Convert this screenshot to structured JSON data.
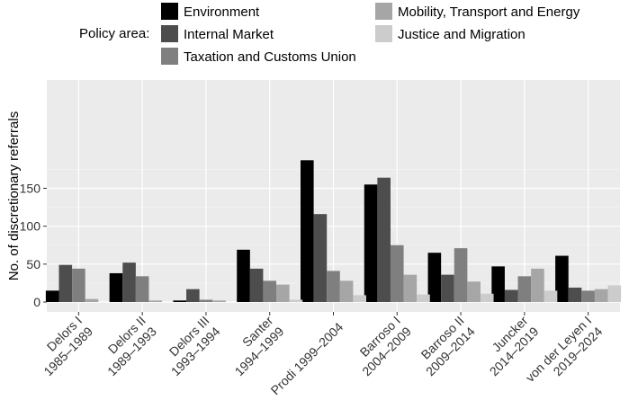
{
  "chart_data": {
    "type": "bar",
    "legend_title": "Policy area:",
    "legend_position": "top",
    "ylabel": "No. of discretionary referrals",
    "xlabel": "",
    "ylim": [
      0,
      190
    ],
    "yticks": [
      0,
      50,
      100,
      150
    ],
    "grid": true,
    "categories": [
      [
        "Delors I",
        "1985–1989"
      ],
      [
        "Delors II",
        "1989–1993"
      ],
      [
        "Delors III",
        "1993–1994"
      ],
      [
        "Santer",
        "1994–1999"
      ],
      [
        "Prodi 1999–2004"
      ],
      [
        "Barroso I",
        "2004–2009"
      ],
      [
        "Barroso II",
        "2009–2014"
      ],
      [
        "Juncker",
        "2014–2019"
      ],
      [
        "von der Leyen I",
        "2019–2024"
      ]
    ],
    "series": [
      {
        "name": "Environment",
        "color": "#000000",
        "values": [
          15,
          38,
          2,
          69,
          187,
          155,
          65,
          47,
          61
        ]
      },
      {
        "name": "Internal Market",
        "color": "#4d4d4d",
        "values": [
          49,
          52,
          17,
          44,
          116,
          164,
          36,
          16,
          19
        ]
      },
      {
        "name": "Taxation and Customs Union",
        "color": "#7f7f7f",
        "values": [
          44,
          34,
          3,
          28,
          41,
          75,
          71,
          34,
          15
        ]
      },
      {
        "name": "Mobility, Transport and Energy",
        "color": "#a6a6a6",
        "values": [
          4,
          2,
          2,
          23,
          28,
          36,
          27,
          44,
          17
        ]
      },
      {
        "name": "Justice and Migration",
        "color": "#cccccc",
        "values": [
          0,
          0,
          0,
          3,
          9,
          10,
          11,
          15,
          22
        ]
      }
    ]
  }
}
